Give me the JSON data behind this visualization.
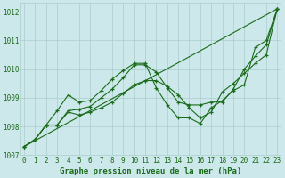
{
  "background_color": "#cce8ea",
  "grid_color": "#aacccc",
  "line_color": "#1a6b1a",
  "xlabel": "Graphe pression niveau de la mer (hPa)",
  "ylim": [
    1007.0,
    1012.3
  ],
  "xlim": [
    -0.3,
    23.3
  ],
  "yticks": [
    1007,
    1008,
    1009,
    1010,
    1011,
    1012
  ],
  "xticks": [
    0,
    1,
    2,
    3,
    4,
    5,
    6,
    7,
    8,
    9,
    10,
    11,
    12,
    13,
    14,
    15,
    16,
    17,
    18,
    19,
    20,
    21,
    22,
    23
  ],
  "series_straight": {
    "x": [
      0,
      23
    ],
    "y": [
      1007.3,
      1012.1
    ]
  },
  "series1": {
    "x": [
      0,
      1,
      2,
      3,
      4,
      5,
      6,
      7,
      8,
      9,
      10,
      11,
      12,
      13,
      14,
      15,
      16,
      17,
      18,
      19,
      20,
      21,
      22,
      23
    ],
    "y": [
      1007.3,
      1007.55,
      1008.05,
      1008.55,
      1009.1,
      1008.85,
      1008.9,
      1009.25,
      1009.65,
      1009.95,
      1010.2,
      1010.2,
      1009.35,
      1008.75,
      1008.3,
      1008.3,
      1008.1,
      1008.65,
      1008.9,
      1009.25,
      1009.45,
      1010.75,
      1011.0,
      1012.1
    ]
  },
  "series2": {
    "x": [
      0,
      1,
      2,
      3,
      4,
      5,
      6,
      7,
      8,
      9,
      10,
      11,
      12,
      13,
      14,
      15,
      16,
      17,
      18,
      19,
      20,
      21,
      22,
      23
    ],
    "y": [
      1007.3,
      1007.55,
      1008.05,
      1008.05,
      1008.55,
      1008.6,
      1008.7,
      1009.0,
      1009.3,
      1009.7,
      1010.15,
      1010.15,
      1009.9,
      1009.35,
      1008.85,
      1008.75,
      1008.75,
      1008.85,
      1008.85,
      1009.3,
      1010.0,
      1010.45,
      1010.85,
      1012.1
    ]
  },
  "series3": {
    "x": [
      0,
      1,
      2,
      3,
      4,
      5,
      6,
      7,
      8,
      9,
      10,
      11,
      12,
      13,
      14,
      15,
      16,
      17,
      18,
      19,
      20,
      21,
      22,
      23
    ],
    "y": [
      1007.3,
      1007.55,
      1008.05,
      1008.05,
      1008.5,
      1008.4,
      1008.5,
      1008.65,
      1008.85,
      1009.15,
      1009.45,
      1009.6,
      1009.6,
      1009.4,
      1009.1,
      1008.65,
      1008.3,
      1008.5,
      1009.2,
      1009.5,
      1009.85,
      1010.2,
      1010.5,
      1012.1
    ]
  }
}
